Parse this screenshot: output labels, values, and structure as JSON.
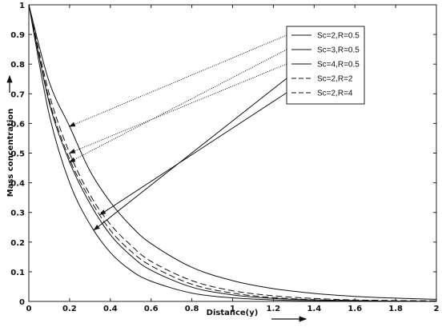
{
  "chart_data": {
    "type": "line",
    "xlabel": "Distance(y)",
    "ylabel": "Mass concentration",
    "xlim": [
      0,
      2
    ],
    "ylim": [
      0,
      1
    ],
    "xticks": [
      "0",
      "0.2",
      "0.4",
      "0.6",
      "0.8",
      "1",
      "1.2",
      "1.4",
      "1.6",
      "1.8",
      "2"
    ],
    "yticks": [
      "0",
      "0.1",
      "0.2",
      "0.3",
      "0.4",
      "0.5",
      "0.6",
      "0.7",
      "0.8",
      "0.9",
      "1"
    ],
    "legend_position": "top-right",
    "grid": false,
    "series": [
      {
        "name": "Sc=2,R=0.5",
        "style": "solid",
        "x": [
          0,
          0.1,
          0.2,
          0.3,
          0.4,
          0.5,
          0.6,
          0.8,
          1.0,
          1.2,
          1.4,
          1.6,
          1.8,
          2.0
        ],
        "y": [
          1.0,
          0.74,
          0.59,
          0.44,
          0.335,
          0.255,
          0.195,
          0.115,
          0.07,
          0.043,
          0.027,
          0.017,
          0.011,
          0.007
        ]
      },
      {
        "name": "Sc=3,R=0.5",
        "style": "solid",
        "x": [
          0,
          0.1,
          0.2,
          0.3,
          0.4,
          0.5,
          0.6,
          0.8,
          1.0,
          1.2,
          1.4,
          1.6,
          1.8,
          2.0
        ],
        "y": [
          1.0,
          0.67,
          0.47,
          0.33,
          0.225,
          0.155,
          0.105,
          0.048,
          0.022,
          0.01,
          0.005,
          0.002,
          0.001,
          0.0
        ]
      },
      {
        "name": "Sc=4,R=0.5",
        "style": "solid",
        "x": [
          0,
          0.1,
          0.2,
          0.3,
          0.4,
          0.5,
          0.6,
          0.8,
          1.0,
          1.2,
          1.4,
          1.6,
          1.8,
          2.0
        ],
        "y": [
          1.0,
          0.63,
          0.4,
          0.26,
          0.165,
          0.105,
          0.068,
          0.028,
          0.012,
          0.005,
          0.002,
          0.001,
          0.0,
          0.0
        ]
      },
      {
        "name": "Sc=2,R=2",
        "style": "dashed",
        "x": [
          0,
          0.1,
          0.2,
          0.3,
          0.4,
          0.5,
          0.6,
          0.8,
          1.0,
          1.2,
          1.4,
          1.6,
          1.8,
          2.0
        ],
        "y": [
          1.0,
          0.7,
          0.5,
          0.36,
          0.26,
          0.19,
          0.135,
          0.07,
          0.036,
          0.019,
          0.01,
          0.005,
          0.003,
          0.002
        ]
      },
      {
        "name": "Sc=2,R=4",
        "style": "dashed",
        "x": [
          0,
          0.1,
          0.2,
          0.3,
          0.4,
          0.5,
          0.6,
          0.8,
          1.0,
          1.2,
          1.4,
          1.6,
          1.8,
          2.0
        ],
        "y": [
          1.0,
          0.68,
          0.48,
          0.345,
          0.24,
          0.17,
          0.12,
          0.058,
          0.028,
          0.013,
          0.006,
          0.003,
          0.001,
          0.0
        ]
      }
    ]
  }
}
